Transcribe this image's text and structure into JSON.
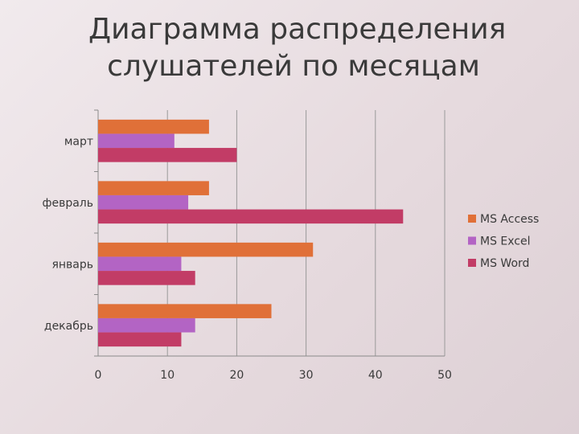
{
  "chart_data": {
    "type": "bar",
    "orientation": "horizontal",
    "title_lines": [
      "Диаграмма распределения",
      "слушателей по месяцам"
    ],
    "categories": [
      "декабрь",
      "январь",
      "февраль",
      "март"
    ],
    "series": [
      {
        "name": "MS Access",
        "color": "#e07038",
        "values": [
          25,
          31,
          16,
          16
        ]
      },
      {
        "name": "MS Excel",
        "color": "#b364c4",
        "values": [
          14,
          12,
          13,
          11
        ]
      },
      {
        "name": "MS Word",
        "color": "#c23c66",
        "values": [
          12,
          14,
          44,
          20
        ]
      }
    ],
    "xlim": [
      0,
      50
    ],
    "xticks": [
      0,
      10,
      20,
      30,
      40,
      50
    ],
    "grid": "vertical",
    "legend": "right"
  }
}
